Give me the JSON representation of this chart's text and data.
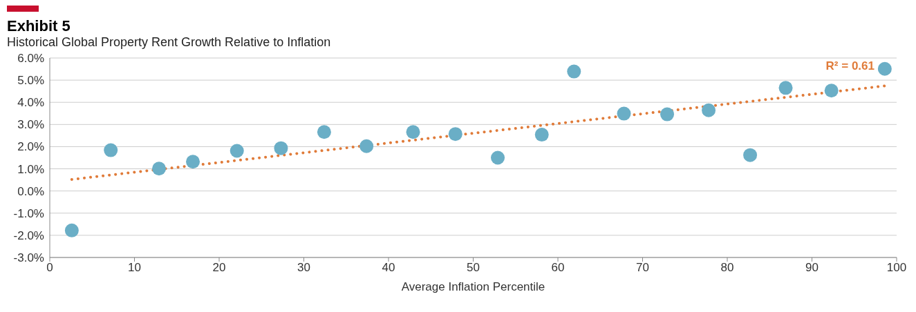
{
  "chart_data": {
    "type": "scatter",
    "title": "Exhibit 5",
    "subtitle": "Historical Global Property Rent Growth Relative to Inflation",
    "xlabel": "Average Inflation Percentile",
    "x": [
      2.6,
      7.2,
      12.9,
      16.9,
      22.1,
      27.3,
      32.4,
      37.4,
      42.9,
      47.9,
      52.9,
      58.1,
      61.9,
      67.8,
      72.9,
      77.8,
      82.7,
      86.9,
      92.3,
      98.6
    ],
    "series": [
      {
        "color": "#6aaec6",
        "marker": "circle",
        "values": [
          -1.78,
          1.84,
          1.01,
          1.32,
          1.81,
          1.93,
          2.66,
          2.02,
          2.66,
          2.57,
          1.5,
          2.54,
          5.39,
          3.49,
          3.46,
          3.64,
          1.62,
          4.65,
          4.53,
          5.51
        ]
      },
      {
        "type": "line",
        "color": "#e07b39",
        "marker": "none",
        "line_style": "dotted",
        "x": [
          2.6,
          98.6
        ],
        "values": [
          0.52,
          4.74
        ]
      }
    ],
    "annotations": [
      "R² = 0.61"
    ],
    "xlim": [
      0,
      100
    ],
    "xticks": [
      0,
      10,
      20,
      30,
      40,
      50,
      60,
      70,
      80,
      90,
      100
    ],
    "ylim": [
      -3,
      6
    ],
    "yticks": [
      {
        "value": -3,
        "label": "-3.0%"
      },
      {
        "value": -2,
        "label": "-2.0%"
      },
      {
        "value": -1,
        "label": "-1.0%"
      },
      {
        "value": 0,
        "label": "0.0%"
      },
      {
        "value": 1,
        "label": "1.0%"
      },
      {
        "value": 2,
        "label": "2.0%"
      },
      {
        "value": 3,
        "label": "3.0%"
      },
      {
        "value": 4,
        "label": "4.0%"
      },
      {
        "value": 5,
        "label": "5.0%"
      },
      {
        "value": 6,
        "label": "6.0%"
      }
    ],
    "grid": "y"
  }
}
